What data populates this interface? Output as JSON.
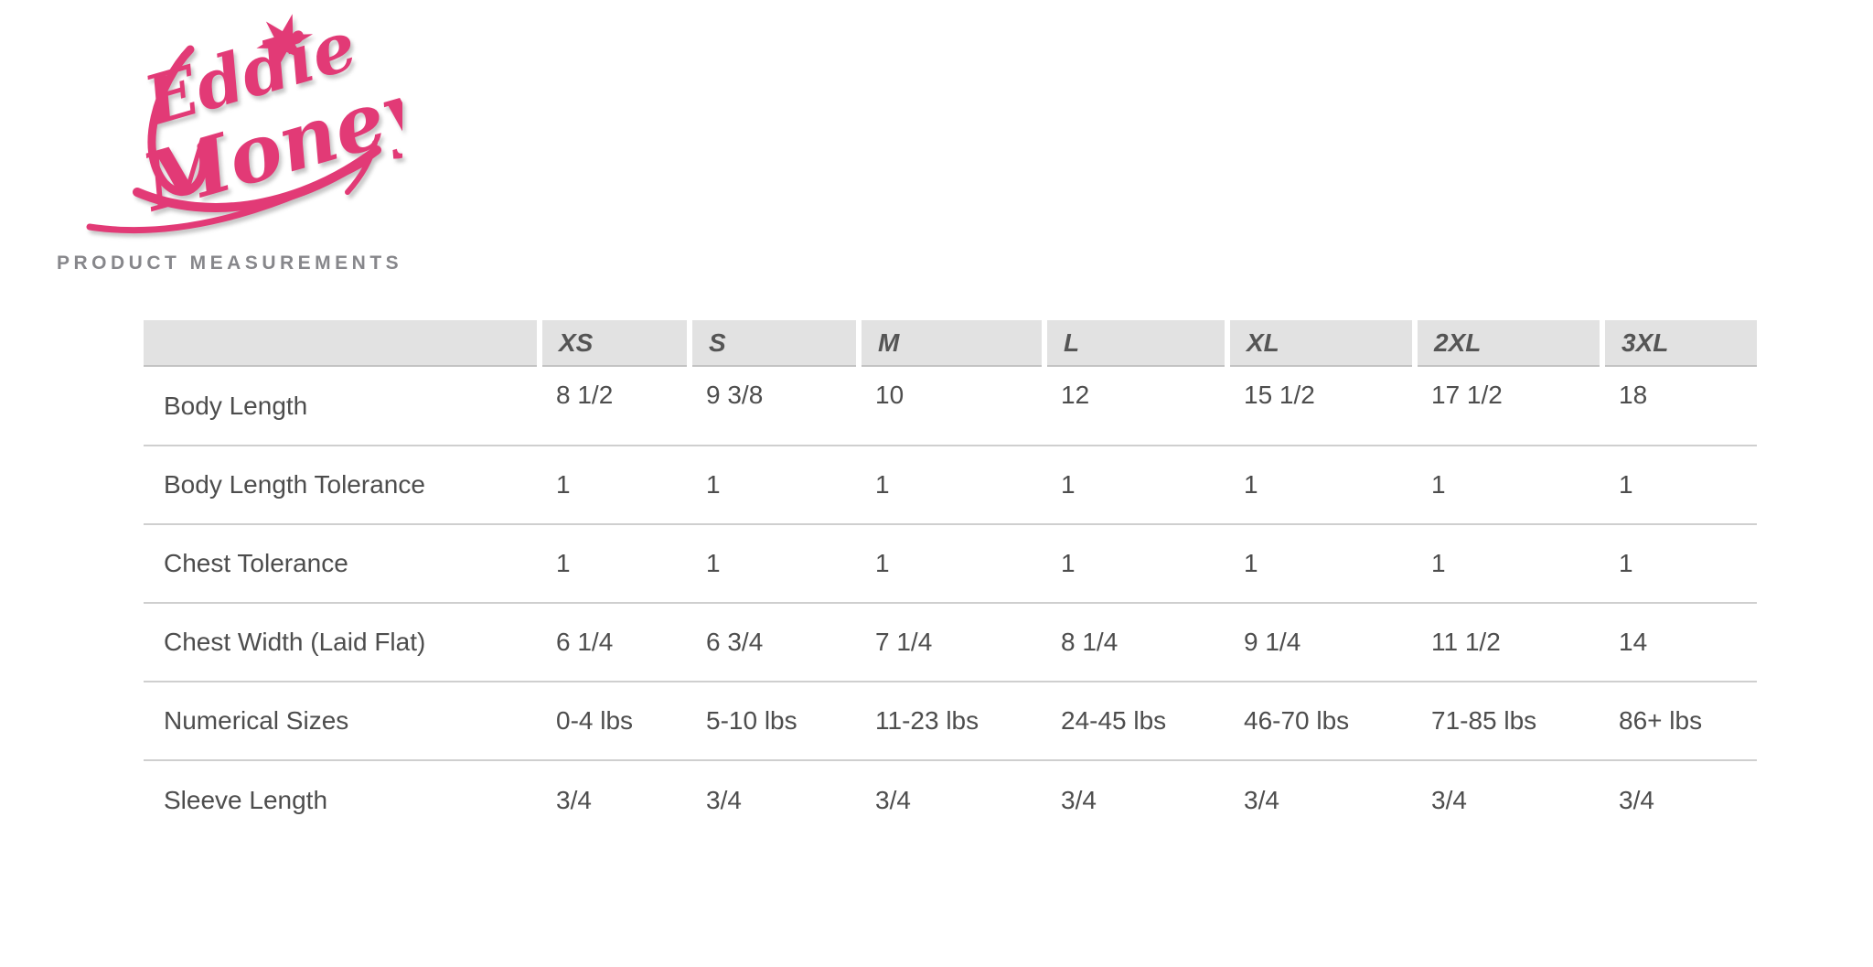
{
  "logo": {
    "line1": "Eddie",
    "line2": "Money",
    "color": "#e23a76"
  },
  "heading": "PRODUCT MEASUREMENTS",
  "chart_data": {
    "type": "table",
    "title": "PRODUCT MEASUREMENTS",
    "columns": [
      "XS",
      "S",
      "M",
      "L",
      "XL",
      "2XL",
      "3XL"
    ],
    "rows": [
      {
        "label": "Body Length",
        "values": [
          "8 1/2",
          "9 3/8",
          "10",
          "12",
          "15 1/2",
          "17 1/2",
          "18"
        ]
      },
      {
        "label": "Body Length Tolerance",
        "values": [
          "1",
          "1",
          "1",
          "1",
          "1",
          "1",
          "1"
        ]
      },
      {
        "label": "Chest Tolerance",
        "values": [
          "1",
          "1",
          "1",
          "1",
          "1",
          "1",
          "1"
        ]
      },
      {
        "label": "Chest Width (Laid Flat)",
        "values": [
          "6 1/4",
          "6 3/4",
          "7 1/4",
          "8 1/4",
          "9 1/4",
          "11 1/2",
          "14"
        ]
      },
      {
        "label": "Numerical Sizes",
        "values": [
          "0-4 lbs",
          "5-10 lbs",
          "11-23 lbs",
          "24-45 lbs",
          "46-70 lbs",
          "71-85 lbs",
          "86+ lbs"
        ]
      },
      {
        "label": "Sleeve Length",
        "values": [
          "3/4",
          "3/4",
          "3/4",
          "3/4",
          "3/4",
          "3/4",
          "3/4"
        ]
      }
    ],
    "layout": {
      "header_background": "#e2e2e2",
      "divider_color": "#cfcfcf",
      "text_color": "#4d4d4d",
      "grid": "horizontal-only"
    }
  }
}
